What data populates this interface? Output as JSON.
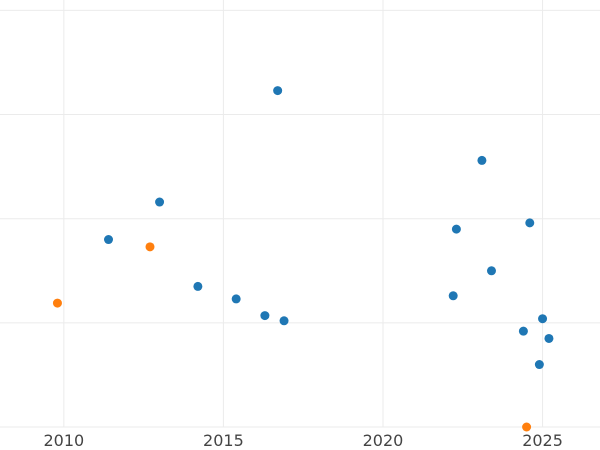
{
  "chart_data": {
    "type": "scatter",
    "title": "",
    "xlabel": "",
    "ylabel": "",
    "grid": true,
    "legend": "none",
    "xlim": [
      2008.0,
      2026.8
    ],
    "ylim": [
      0,
      4.1
    ],
    "x_ticks": [
      2010,
      2015,
      2020,
      2025
    ],
    "x_tick_labels": [
      "2010",
      "2015",
      "2020",
      "2025"
    ],
    "y_gridlines": [
      0,
      1,
      2,
      3,
      4
    ],
    "colors": {
      "blue": "#1f77b4",
      "orange": "#ff7f0e"
    },
    "series": [
      {
        "color": "blue",
        "points": [
          {
            "x": 2011.4,
            "y": 1.8
          },
          {
            "x": 2013.0,
            "y": 2.16
          },
          {
            "x": 2014.2,
            "y": 1.35
          },
          {
            "x": 2015.4,
            "y": 1.23
          },
          {
            "x": 2016.3,
            "y": 1.07
          },
          {
            "x": 2016.7,
            "y": 3.23
          },
          {
            "x": 2016.9,
            "y": 1.02
          },
          {
            "x": 2022.2,
            "y": 1.26
          },
          {
            "x": 2022.3,
            "y": 1.9
          },
          {
            "x": 2023.1,
            "y": 2.56
          },
          {
            "x": 2023.4,
            "y": 1.5
          },
          {
            "x": 2024.4,
            "y": 0.92
          },
          {
            "x": 2024.6,
            "y": 1.96
          },
          {
            "x": 2024.9,
            "y": 0.6
          },
          {
            "x": 2025.0,
            "y": 1.04
          },
          {
            "x": 2025.2,
            "y": 0.85
          }
        ]
      },
      {
        "color": "orange",
        "points": [
          {
            "x": 2009.8,
            "y": 1.19
          },
          {
            "x": 2012.7,
            "y": 1.73
          },
          {
            "x": 2024.5,
            "y": 0.0
          }
        ]
      }
    ]
  }
}
